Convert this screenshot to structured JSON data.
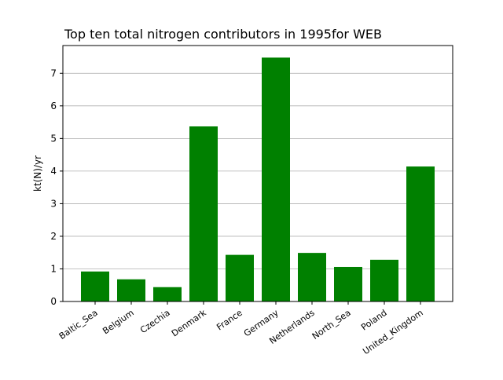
{
  "chart_data": {
    "type": "bar",
    "title": "Top ten total nitrogen contributors in 1995for  WEB",
    "xlabel": "",
    "ylabel": "kt(N)/yr",
    "categories": [
      "Baltic_Sea",
      "Belgium",
      "Czechia",
      "Denmark",
      "France",
      "Germany",
      "Netherlands",
      "North_Sea",
      "Poland",
      "United_Kingdom"
    ],
    "values": [
      0.92,
      0.68,
      0.44,
      5.37,
      1.43,
      7.48,
      1.49,
      1.06,
      1.28,
      4.14
    ],
    "ylim": [
      0,
      7.85
    ],
    "yticks": [
      0,
      1,
      2,
      3,
      4,
      5,
      6,
      7
    ],
    "grid": "y",
    "legend": "none",
    "bar_color": "#008000"
  }
}
